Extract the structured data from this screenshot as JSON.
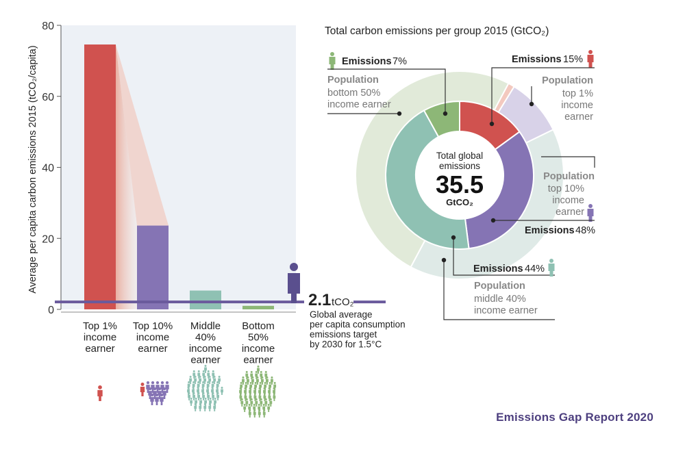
{
  "chart_data": [
    {
      "type": "bar",
      "ylabel": "Average per capita carbon emissions 2015 (tCO₂/capita)",
      "ylim": [
        0,
        80
      ],
      "yticks": [
        0,
        20,
        40,
        60,
        80
      ],
      "grid": false,
      "categories": [
        [
          "Top 1%",
          "income",
          "earner"
        ],
        [
          "Top 10%",
          "income",
          "earner"
        ],
        [
          "Middle",
          "40%",
          "income",
          "earner"
        ],
        [
          "Bottom",
          "50%",
          "income",
          "earner"
        ]
      ],
      "values": [
        74.6,
        23.6,
        5.3,
        1.0
      ],
      "colors": [
        "#d0524f",
        "#8574b4",
        "#8fc1b3",
        "#8db777"
      ],
      "target": {
        "value": 2.1,
        "number": "2.1",
        "unit": "tCO₂",
        "lines": [
          "Global average",
          "per capita consumption",
          "emissions target",
          "by 2030 for 1.5°C"
        ],
        "color": "#6a5a9c"
      }
    },
    {
      "type": "pie",
      "title": "Total carbon emissions per group 2015 (GtCO₂)",
      "center": {
        "line1": "Total global",
        "line2": "emissions",
        "value": "35.5",
        "unit": "GtCO₂"
      },
      "groups": [
        "Top 1% income earner",
        "Top 10% income earner",
        "Middle 40% income earner",
        "Bottom 50% income earner"
      ],
      "emissions_share": [
        15,
        48,
        44,
        7
      ],
      "population_share": [
        1,
        10,
        40,
        50
      ],
      "colors": [
        "#d0524f",
        "#8574b4",
        "#8fc1b3",
        "#8db777"
      ],
      "light_colors": [
        "#f3c9bf",
        "#d8d2e8",
        "#dfeae7",
        "#e1ead9"
      ]
    }
  ],
  "labels": {
    "emissions_word": "Emissions",
    "population_word": "Population",
    "top1_emissions_pct": "15%",
    "top10_emissions_pct": "48%",
    "middle_emissions_pct": "44%",
    "bottom_emissions_pct": "7%",
    "top1_pop": [
      "top 1%",
      "income",
      "earner"
    ],
    "top10_pop": [
      "top 10%",
      "income",
      "earner"
    ],
    "middle_pop": [
      "middle 40%",
      "income earner"
    ],
    "bottom_pop": [
      "bottom 50%",
      "income earner"
    ]
  },
  "footer": "Emissions Gap Report 2020"
}
